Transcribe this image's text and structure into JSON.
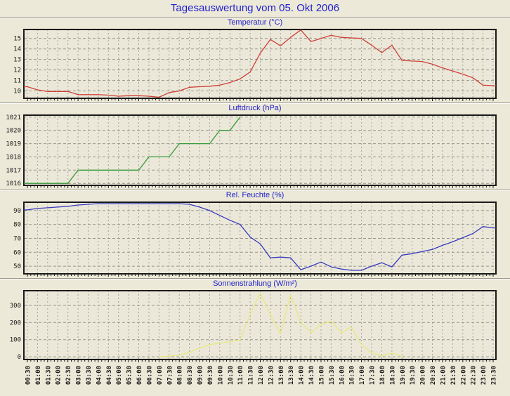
{
  "page": {
    "title": "Tagesauswertung vom 05. Okt 2006"
  },
  "colors": {
    "background": "#ece9d8",
    "plot_background": "#ebe8d9",
    "title_blue": "#2222cc",
    "axis_border": "#1a1a1a",
    "grid_horizontal": "#96968c",
    "grid_vertical": "#a3a398",
    "temperature_line": "#d04038",
    "pressure_line": "#359a38",
    "humidity_line": "#3838c0",
    "sun_line": "#e8e882",
    "divider_dark": "#9a9588",
    "divider_light": "#ffffff"
  },
  "x_axis": {
    "labels": [
      "00:30",
      "01:00",
      "01:30",
      "02:00",
      "02:30",
      "03:00",
      "03:30",
      "04:00",
      "04:30",
      "05:00",
      "05:30",
      "06:00",
      "06:30",
      "07:00",
      "07:30",
      "08:00",
      "08:30",
      "09:00",
      "09:30",
      "10:00",
      "10:30",
      "11:00",
      "11:30",
      "12:00",
      "12:30",
      "13:00",
      "13:30",
      "14:00",
      "14:30",
      "15:00",
      "15:30",
      "16:00",
      "16:30",
      "17:00",
      "17:30",
      "18:00",
      "18:30",
      "19:00",
      "19:30",
      "20:00",
      "20:30",
      "21:00",
      "21:30",
      "22:00",
      "22:30",
      "23:00",
      "23:30"
    ]
  },
  "chart_data": [
    {
      "type": "line",
      "name": "temperature",
      "title": "Temperatur (°C)",
      "color": "#d04038",
      "ylim": [
        9.3,
        15.85
      ],
      "yticks": [
        10,
        11,
        12,
        13,
        14,
        15
      ],
      "grid": true,
      "values": [
        10.4,
        10.1,
        9.95,
        9.95,
        9.95,
        9.65,
        9.65,
        9.65,
        9.6,
        9.5,
        9.55,
        9.55,
        9.5,
        9.4,
        9.85,
        10.0,
        10.35,
        10.4,
        10.45,
        10.55,
        10.8,
        11.15,
        11.8,
        13.6,
        14.9,
        14.3,
        15.1,
        15.8,
        14.7,
        15.0,
        15.3,
        15.1,
        15.05,
        15.0,
        14.35,
        13.65,
        14.35,
        12.9,
        12.85,
        12.8,
        12.55,
        12.2,
        11.9,
        11.6,
        11.25,
        10.55,
        10.5
      ]
    },
    {
      "type": "line",
      "name": "pressure",
      "title": "Luftdruck (hPa)",
      "color": "#359a38",
      "ylim": [
        1015.85,
        1021.15
      ],
      "yticks": [
        1016,
        1017,
        1018,
        1019,
        1020,
        1021
      ],
      "grid": true,
      "values": [
        1016,
        1016,
        1016,
        1016,
        1016,
        1017,
        1017,
        1017,
        1017,
        1017,
        1017,
        1017,
        1018,
        1018,
        1018,
        1019,
        1019,
        1019,
        1019,
        1020,
        1020,
        1021,
        null,
        null,
        null,
        null,
        null,
        null,
        null,
        null,
        null,
        null,
        null,
        null,
        null,
        null,
        null,
        null,
        null,
        null,
        null,
        null,
        null,
        null,
        null,
        null,
        null
      ]
    },
    {
      "type": "line",
      "name": "humidity",
      "title": "Rel. Feuchte (%)",
      "color": "#3838c0",
      "ylim": [
        44.5,
        96
      ],
      "yticks": [
        50,
        60,
        70,
        80,
        90
      ],
      "grid": true,
      "values": [
        90.5,
        91.5,
        92,
        92.5,
        93,
        94,
        94.5,
        95,
        95,
        95,
        95,
        95,
        95,
        95,
        95,
        95,
        94.5,
        92.5,
        90,
        86.5,
        83,
        80,
        71,
        66,
        56,
        56.5,
        56,
        47.5,
        50,
        53,
        49.5,
        48,
        47,
        47,
        50,
        52.5,
        49.5,
        58,
        59,
        60.5,
        62,
        65,
        67.5,
        70.5,
        73.5,
        78.5,
        77.5
      ]
    },
    {
      "type": "line",
      "name": "sun",
      "title": "Sonnenstrahlung (W/m²)",
      "color": "#e8e882",
      "ylim": [
        -16,
        386
      ],
      "yticks": [
        0,
        100,
        200,
        300
      ],
      "grid": true,
      "values": [
        null,
        null,
        null,
        null,
        null,
        null,
        null,
        null,
        null,
        null,
        null,
        null,
        null,
        0,
        3,
        10,
        25,
        50,
        70,
        80,
        88,
        98,
        250,
        370,
        245,
        135,
        362,
        200,
        140,
        190,
        207,
        140,
        173,
        71,
        23,
        5,
        22,
        2,
        null,
        null,
        null,
        null,
        null,
        null,
        null,
        null,
        null
      ]
    }
  ]
}
